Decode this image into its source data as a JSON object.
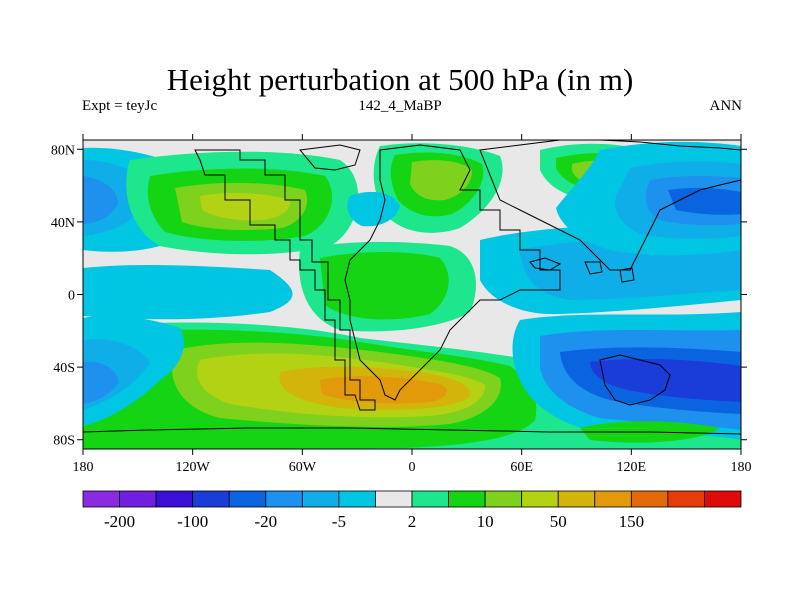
{
  "title": "Height perturbation at 500 hPa (in m)",
  "experiment": "Expt = teyJc",
  "period": "142_4_MaBP",
  "season": "ANN",
  "map": {
    "lon_ticks": [
      "180",
      "120W",
      "60W",
      "0",
      "60E",
      "120E",
      "180"
    ],
    "lat_ticks": [
      "80N",
      "40N",
      "0",
      "40S",
      "80S"
    ],
    "colors": {
      "v_neg200": "#8a2be2",
      "v_neg100": "#3a10d8",
      "v_neg50": "#1a3cd8",
      "v_neg20": "#0a64e0",
      "v_neg10": "#1e90ee",
      "v_neg5": "#10aee8",
      "v_neg2": "#00c6e4",
      "v_zero": "#e8e8e8",
      "v_2": "#1ee68c",
      "v_5": "#14d414",
      "v_10": "#7ed21e",
      "v_20": "#b4d214",
      "v_50": "#d2b40a",
      "v_100": "#e29a0a",
      "v_150": "#e26a0a",
      "land": "#000000"
    }
  },
  "colorbar": {
    "colors": [
      "#8a2be2",
      "#6f1fe0",
      "#3a10d8",
      "#1a3cd8",
      "#0a64e0",
      "#1e90ee",
      "#10aee8",
      "#00c6e4",
      "#e8e8e8",
      "#1ee68c",
      "#14d414",
      "#7ed21e",
      "#b4d214",
      "#d2b40a",
      "#e29a0a",
      "#e26a0a",
      "#e63c0a",
      "#e00a0a"
    ],
    "labels": [
      "-200",
      "-100",
      "-20",
      "-5",
      "2",
      "10",
      "50",
      "150"
    ]
  }
}
